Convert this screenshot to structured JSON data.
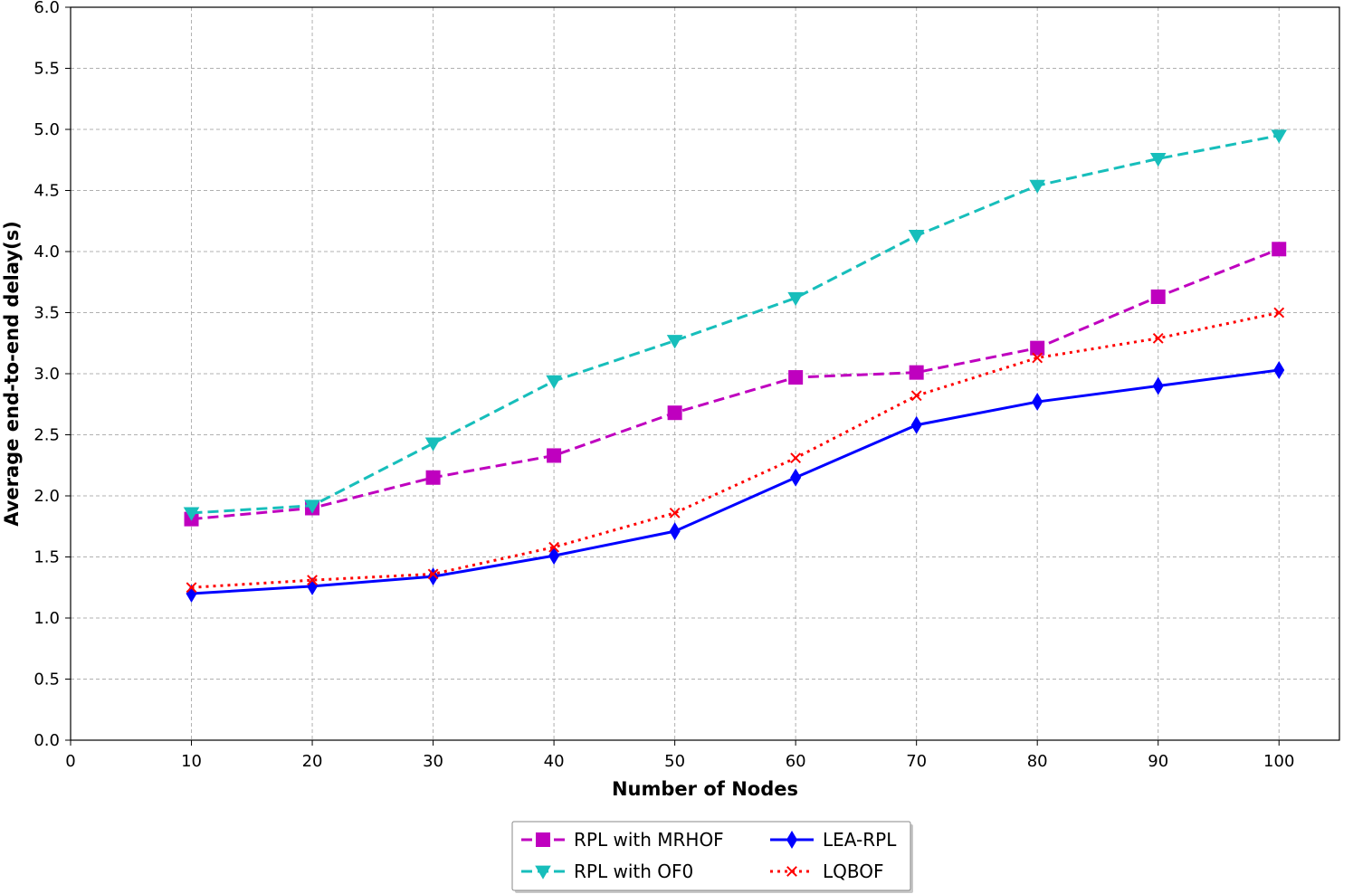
{
  "chart_data": {
    "type": "line",
    "title": "",
    "xlabel": "Number of Nodes",
    "ylabel": "Average end-to-end delay(s)",
    "xlim": [
      0,
      105
    ],
    "ylim": [
      0,
      6.0
    ],
    "xticks": [
      0,
      10,
      20,
      30,
      40,
      50,
      60,
      70,
      80,
      90,
      100
    ],
    "yticks": [
      "0.0",
      "0.5",
      "1.0",
      "1.5",
      "2.0",
      "2.5",
      "3.0",
      "3.5",
      "4.0",
      "4.5",
      "5.0",
      "5.5",
      "6.0"
    ],
    "grid": true,
    "legend_position": "bottom-center",
    "x": [
      10,
      20,
      30,
      40,
      50,
      60,
      70,
      80,
      90,
      100
    ],
    "series": [
      {
        "name": "RPL with MRHOF",
        "color": "#bf00bf",
        "marker": "square",
        "line": "dashed",
        "values": [
          1.81,
          1.9,
          2.15,
          2.33,
          2.68,
          2.97,
          3.01,
          3.21,
          3.63,
          4.02
        ]
      },
      {
        "name": "RPL with OF0",
        "color": "#17bebb",
        "marker": "triangle-down",
        "line": "dashed",
        "values": [
          1.86,
          1.92,
          2.43,
          2.94,
          3.27,
          3.62,
          4.13,
          4.54,
          4.76,
          4.95
        ]
      },
      {
        "name": "LEA-RPL",
        "color": "#0000ff",
        "marker": "diamond",
        "line": "solid",
        "values": [
          1.2,
          1.26,
          1.34,
          1.51,
          1.71,
          2.15,
          2.58,
          2.77,
          2.9,
          3.03
        ]
      },
      {
        "name": "LQBOF",
        "color": "#ff0000",
        "marker": "x",
        "line": "dotted",
        "values": [
          1.25,
          1.31,
          1.36,
          1.58,
          1.86,
          2.31,
          2.82,
          3.13,
          3.29,
          3.5
        ]
      }
    ]
  }
}
